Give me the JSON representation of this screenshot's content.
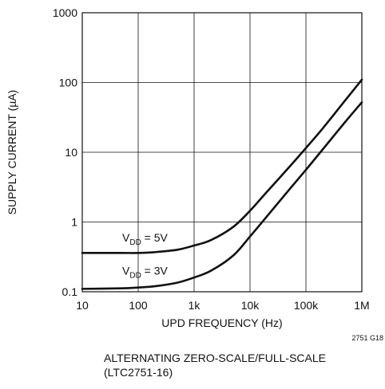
{
  "chart_data": {
    "type": "line",
    "x_scale": "log",
    "y_scale": "log",
    "xlim": [
      10,
      1000000
    ],
    "ylim": [
      0.1,
      1000
    ],
    "grid": true,
    "xlabel": "UPD FREQUENCY (Hz)",
    "ylabel": "SUPPLY CURRENT (µA)",
    "x_tick_values": [
      10,
      100,
      1000,
      10000,
      100000,
      1000000
    ],
    "x_tick_labels": [
      "10",
      "100",
      "1k",
      "10k",
      "100k",
      "1M"
    ],
    "y_tick_values": [
      0.1,
      1,
      10,
      100,
      1000
    ],
    "y_tick_labels": [
      "0.1",
      "1",
      "10",
      "100",
      "1000"
    ],
    "series": [
      {
        "label_main": "V",
        "label_sub": "DD",
        "label_rest": " = 5V",
        "label_anchor": [
          10,
          0.6
        ],
        "x": [
          10,
          50,
          100,
          200,
          500,
          1000,
          2000,
          5000,
          10000,
          20000,
          50000,
          100000,
          200000,
          500000,
          1000000
        ],
        "y": [
          0.36,
          0.36,
          0.36,
          0.37,
          0.4,
          0.46,
          0.55,
          0.85,
          1.45,
          2.7,
          6.1,
          11.5,
          22,
          55,
          110
        ]
      },
      {
        "label_main": "V",
        "label_sub": "DD",
        "label_rest": " = 3V",
        "label_anchor": [
          10,
          0.2
        ],
        "x": [
          10,
          50,
          100,
          200,
          500,
          1000,
          2000,
          5000,
          10000,
          20000,
          50000,
          100000,
          200000,
          500000,
          1000000
        ],
        "y": [
          0.11,
          0.112,
          0.115,
          0.12,
          0.135,
          0.16,
          0.2,
          0.33,
          0.62,
          1.2,
          2.9,
          5.6,
          11,
          27,
          52
        ]
      }
    ],
    "figure_id": "2751 G18",
    "caption_lines": [
      "ALTERNATING ZERO-SCALE/FULL-SCALE",
      "(LTC2751-16)"
    ]
  }
}
